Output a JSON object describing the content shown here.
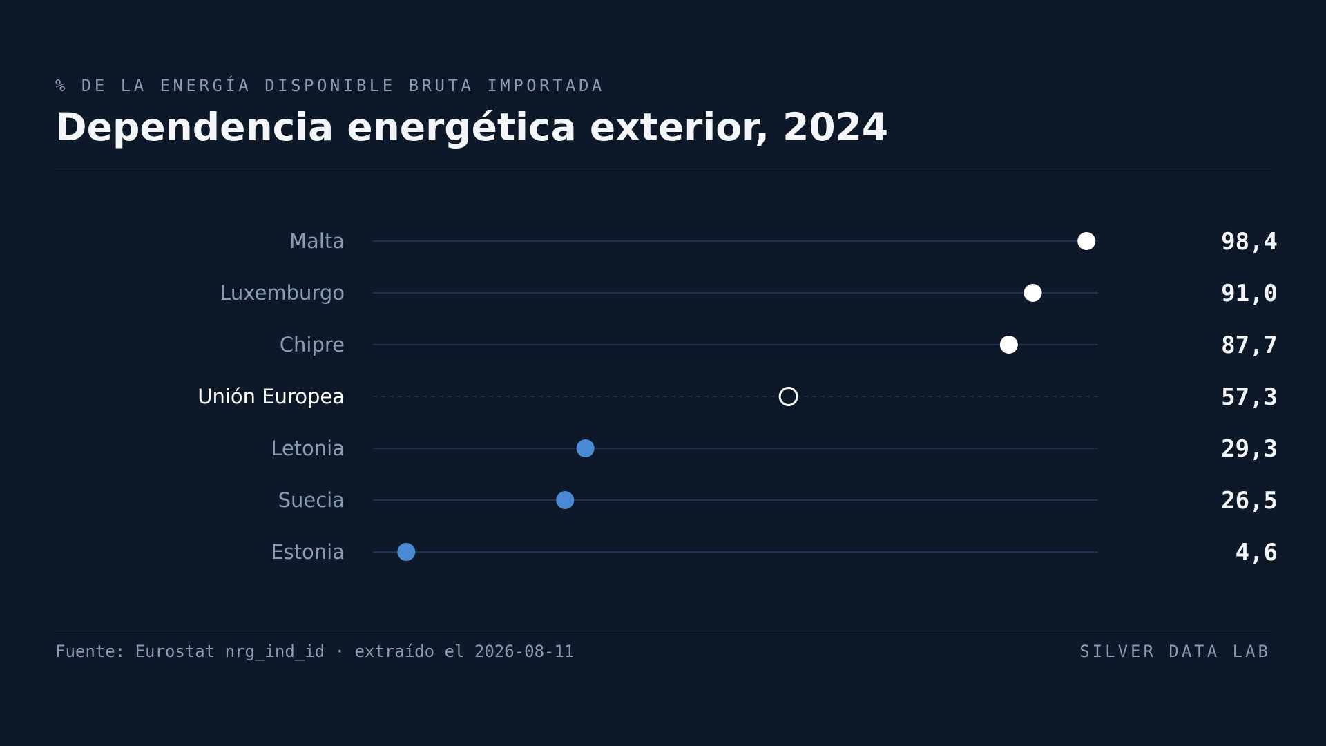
{
  "header": {
    "kicker": "% DE LA ENERGÍA DISPONIBLE BRUTA IMPORTADA",
    "title": "Dependencia energética exterior, 2024"
  },
  "footer": {
    "source": "Fuente: Eurostat nrg_ind_id · extraído el 2026-08-11",
    "brand": "SILVER DATA LAB"
  },
  "colors": {
    "background": "#0d1929",
    "high": "#ffffff",
    "low": "#4a8ad4",
    "reference_outline": "#ffffff",
    "track": "#1e3350",
    "label": "#8a9bb4",
    "label_highlight": "#ffffff",
    "value": "#f3f5f8"
  },
  "chart_data": {
    "type": "dot",
    "title": "Dependencia energética exterior, 2024",
    "subtitle": "% DE LA ENERGÍA DISPONIBLE BRUTA IMPORTADA",
    "xlim": [
      0,
      100
    ],
    "grid": false,
    "legend": "none",
    "categories": [
      "Malta",
      "Luxemburgo",
      "Chipre",
      "Unión Europea",
      "Letonia",
      "Suecia",
      "Estonia"
    ],
    "values": [
      98.4,
      91.0,
      87.7,
      57.3,
      29.3,
      26.5,
      4.6
    ],
    "value_labels": [
      "98,4",
      "91,0",
      "87,7",
      "57,3",
      "29,3",
      "26,5",
      "4,6"
    ],
    "groups": [
      "high",
      "high",
      "high",
      "reference",
      "low",
      "low",
      "low"
    ]
  }
}
